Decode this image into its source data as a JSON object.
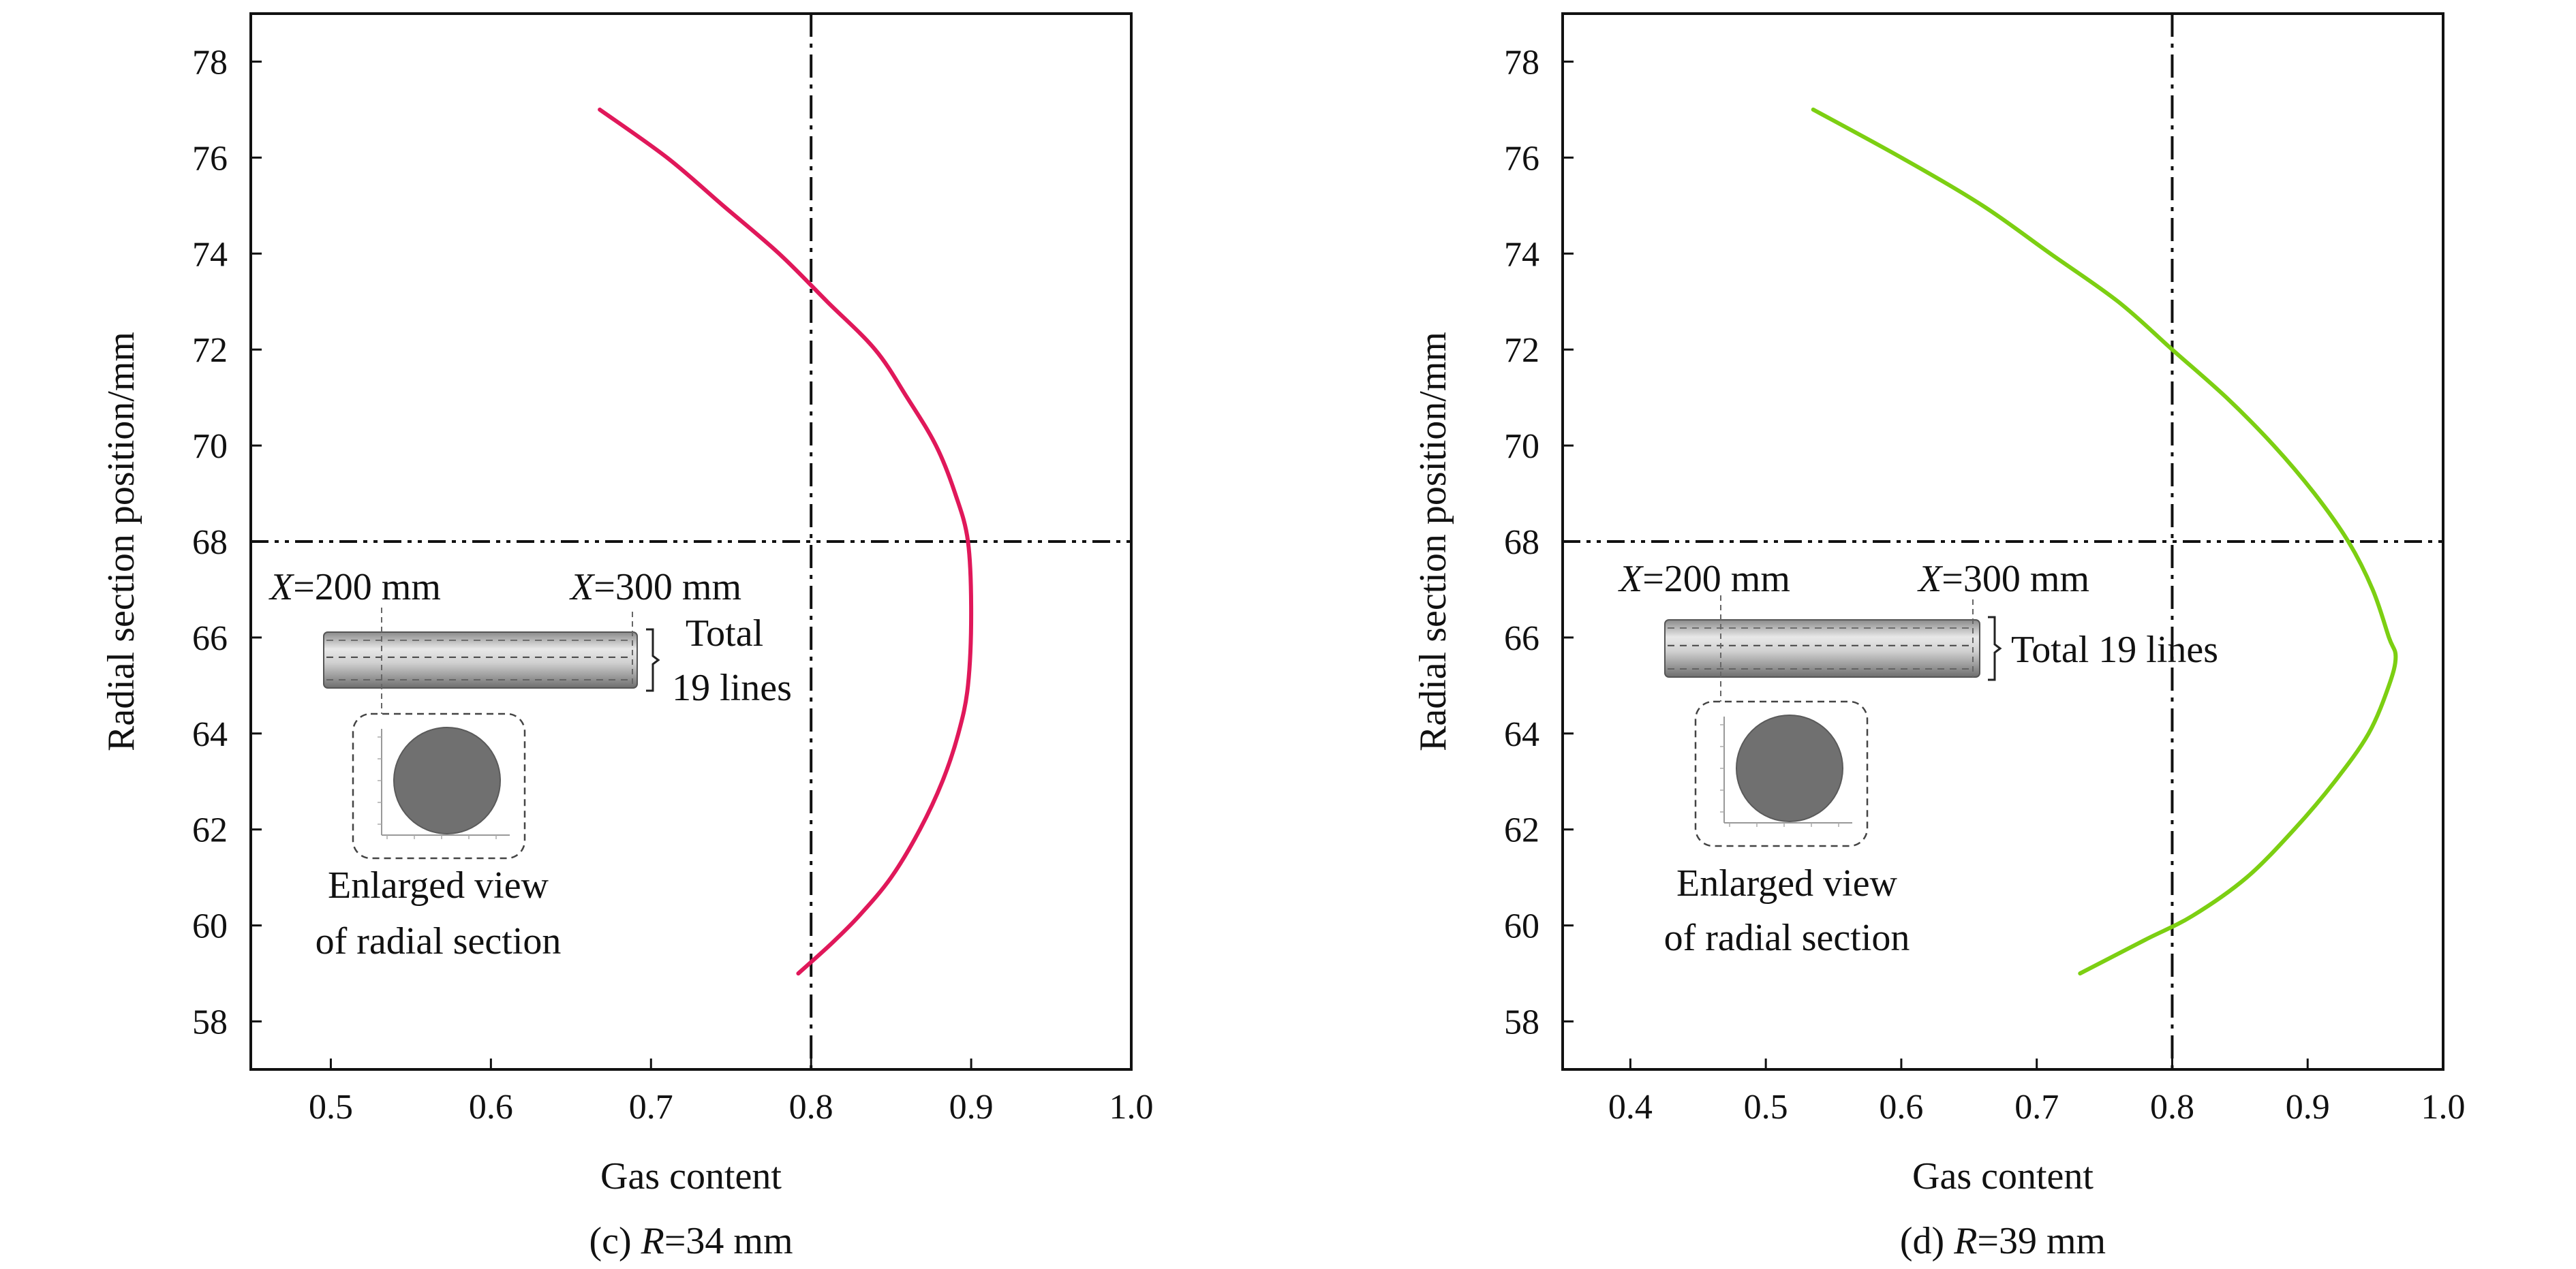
{
  "chart_data": [
    {
      "type": "line",
      "caption_prefix": "(c) ",
      "caption_var": "R",
      "caption_suffix": "=34 mm",
      "xlabel": "Gas content",
      "ylabel": "Radial section position/mm",
      "xlim": [
        0.45,
        1.0
      ],
      "ylim": [
        57,
        79
      ],
      "xticks": [
        0.5,
        0.6,
        0.7,
        0.8,
        0.9,
        1.0
      ],
      "xtick_labels": [
        "0.5",
        "0.6",
        "0.7",
        "0.8",
        "0.9",
        "1.0"
      ],
      "yticks": [
        58,
        60,
        62,
        64,
        66,
        68,
        70,
        72,
        74,
        76,
        78
      ],
      "ytick_labels": [
        "58",
        "60",
        "62",
        "64",
        "66",
        "68",
        "70",
        "72",
        "74",
        "76",
        "78"
      ],
      "ref_vline_x": 0.8,
      "ref_hline_y": 68,
      "line_color": "#e0185a",
      "series": [
        {
          "x": [
            0.668,
            0.71,
            0.745,
            0.78,
            0.81,
            0.84,
            0.86,
            0.878,
            0.89,
            0.898,
            0.9,
            0.898,
            0.892,
            0.882,
            0.868,
            0.85,
            0.83,
            0.812,
            0.792
          ],
          "y": [
            77,
            76,
            75,
            74,
            73,
            72,
            71,
            70,
            69,
            68,
            66.5,
            65,
            64,
            63,
            62,
            61,
            60.2,
            59.6,
            59
          ]
        }
      ],
      "inset": {
        "label_x200_var": "X",
        "label_x200_val": "=200 mm",
        "label_x300_var": "X",
        "label_x300_val": "=300 mm",
        "lines_label": [
          "Total",
          "19 lines"
        ],
        "enlarged_label": [
          "Enlarged view",
          "of radial section"
        ]
      }
    },
    {
      "type": "line",
      "caption_prefix": "(d) ",
      "caption_var": "R",
      "caption_suffix": "=39 mm",
      "xlabel": "Gas content",
      "ylabel": "Radial section position/mm",
      "xlim": [
        0.35,
        1.0
      ],
      "ylim": [
        57,
        79
      ],
      "xticks": [
        0.4,
        0.5,
        0.6,
        0.7,
        0.8,
        0.9,
        1.0
      ],
      "xtick_labels": [
        "0.4",
        "0.5",
        "0.6",
        "0.7",
        "0.8",
        "0.9",
        "1.0"
      ],
      "yticks": [
        58,
        60,
        62,
        64,
        66,
        68,
        70,
        72,
        74,
        76,
        78
      ],
      "ytick_labels": [
        "58",
        "60",
        "62",
        "64",
        "66",
        "68",
        "70",
        "72",
        "74",
        "76",
        "78"
      ],
      "ref_vline_x": 0.8,
      "ref_hline_y": 68,
      "line_color": "#7ccf12",
      "series": [
        {
          "x": [
            0.535,
            0.6,
            0.66,
            0.71,
            0.76,
            0.8,
            0.84,
            0.875,
            0.905,
            0.93,
            0.948,
            0.96,
            0.965,
            0.96,
            0.945,
            0.92,
            0.89,
            0.855,
            0.815,
            0.78,
            0.732
          ],
          "y": [
            77,
            76,
            75,
            74,
            73,
            72,
            71,
            70,
            69,
            68,
            67,
            66,
            65.6,
            65,
            64,
            63,
            62,
            61,
            60.2,
            59.7,
            59
          ]
        }
      ],
      "inset": {
        "label_x200_var": "X",
        "label_x200_val": "=200 mm",
        "label_x300_var": "X",
        "label_x300_val": "=300 mm",
        "lines_label": [
          "Total 19 lines"
        ],
        "enlarged_label": [
          "Enlarged view",
          "of radial section"
        ]
      }
    }
  ]
}
